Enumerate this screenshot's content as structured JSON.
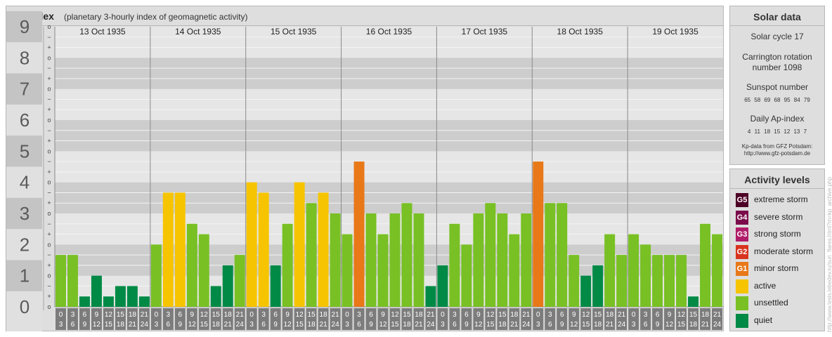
{
  "header": {
    "title": "Kp-index",
    "subtitle": "(planetary 3-hourly index of geomagnetic activity)"
  },
  "solar": {
    "title": "Solar data",
    "cycle": "Solar cycle 17",
    "carrington_line1": "Carrington rotation",
    "carrington_line2": "number 1098",
    "sunspot_title": "Sunspot number",
    "sunspot_values": "65 58 69 68 95 84 79",
    "ap_title": "Daily Ap-index",
    "ap_values": "4 11 18 15 12 13 7",
    "source_line1": "Kp-data from GFZ Potsdam:",
    "source_line2": "http://www.gfz-potsdam.de"
  },
  "legend": {
    "title": "Activity levels",
    "items": [
      {
        "code": "G5",
        "label": "extreme storm",
        "color": "#4d0026"
      },
      {
        "code": "G4",
        "label": "severe storm",
        "color": "#7a0a4a"
      },
      {
        "code": "G3",
        "label": "strong storm",
        "color": "#b01c68"
      },
      {
        "code": "G2",
        "label": "moderate storm",
        "color": "#d8341e"
      },
      {
        "code": "G1",
        "label": "minor storm",
        "color": "#e87818"
      },
      {
        "code": "",
        "label": "active",
        "color": "#f6c400"
      },
      {
        "code": "",
        "label": "unsettled",
        "color": "#78c024"
      },
      {
        "code": "",
        "label": "quiet",
        "color": "#008a46"
      }
    ]
  },
  "credit": "http://www.tesis.lebedev.ru/sun_flares.html?m=kp_archive.php",
  "chart_data": {
    "type": "bar",
    "ylim": [
      0,
      9
    ],
    "y_ticks": [
      "0",
      "1",
      "2",
      "3",
      "4",
      "5",
      "6",
      "7",
      "8",
      "9"
    ],
    "minor_tick_labels": [
      "+",
      "−",
      "o"
    ],
    "days": [
      "13 Oct 1935",
      "14 Oct 1935",
      "15 Oct 1935",
      "16 Oct 1935",
      "17 Oct 1935",
      "18 Oct 1935",
      "19 Oct 1935"
    ],
    "interval_labels": [
      [
        "0",
        "3"
      ],
      [
        "3",
        "6"
      ],
      [
        "6",
        "9"
      ],
      [
        "9",
        "12"
      ],
      [
        "12",
        "15"
      ],
      [
        "15",
        "18"
      ],
      [
        "18",
        "21"
      ],
      [
        "21",
        "24"
      ]
    ],
    "colors": {
      "quiet": "#008a46",
      "unsettled": "#78c024",
      "active": "#f6c400",
      "minor_storm": "#e87818"
    },
    "values": [
      1.667,
      1.667,
      0.333,
      1.0,
      0.333,
      0.667,
      0.667,
      0.333,
      2.0,
      3.667,
      3.667,
      2.667,
      2.333,
      0.667,
      1.333,
      1.667,
      4.0,
      3.667,
      1.333,
      2.667,
      4.0,
      3.333,
      3.667,
      3.0,
      2.333,
      4.667,
      3.0,
      2.333,
      3.0,
      3.333,
      3.0,
      0.667,
      1.333,
      2.667,
      2.0,
      3.0,
      3.333,
      3.0,
      2.333,
      3.0,
      4.667,
      3.333,
      3.333,
      1.667,
      1.0,
      1.333,
      2.333,
      1.667,
      2.333,
      2.0,
      1.667,
      1.667,
      1.667,
      0.333,
      2.667,
      2.333
    ]
  }
}
